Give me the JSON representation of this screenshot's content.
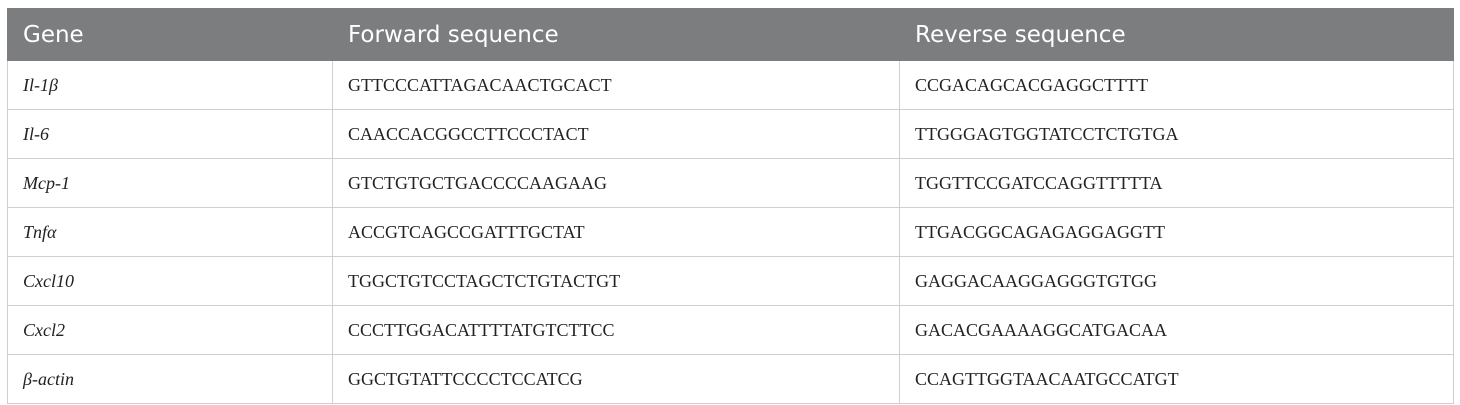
{
  "table": {
    "headers": [
      "Gene",
      "Forward sequence",
      "Reverse sequence"
    ],
    "rows": [
      {
        "gene": "Il-1β",
        "forward": "GTTCCCATTAGACAACTGCACT",
        "reverse": "CCGACAGCACGAGGCTTTT"
      },
      {
        "gene": "Il-6",
        "forward": "CAACCACGGCCTTCCCTACT",
        "reverse": "TTGGGAGTGGTATCCTCTGTGA"
      },
      {
        "gene": "Mcp-1",
        "forward": "GTCTGTGCTGACCCCAAGAAG",
        "reverse": "TGGTTCCGATCCAGGTTTTTA"
      },
      {
        "gene": "Tnfα",
        "forward": "ACCGTCAGCCGATTTGCTAT",
        "reverse": "TTGACGGCAGAGAGGAGGTT"
      },
      {
        "gene": "Cxcl10",
        "forward": "TGGCTGTCCTAGCTCTGTACTGT",
        "reverse": "GAGGACAAGGAGGGTGTGG"
      },
      {
        "gene": "Cxcl2",
        "forward": "CCCTTGGACATTTTATGTCTTCC",
        "reverse": "GACACGAAAAGGCATGACAA"
      },
      {
        "gene": "β-actin",
        "forward": "GGCTGTATTCCCCTCCATCG",
        "reverse": "CCAGTTGGTAACAATGCCATGT"
      }
    ]
  }
}
